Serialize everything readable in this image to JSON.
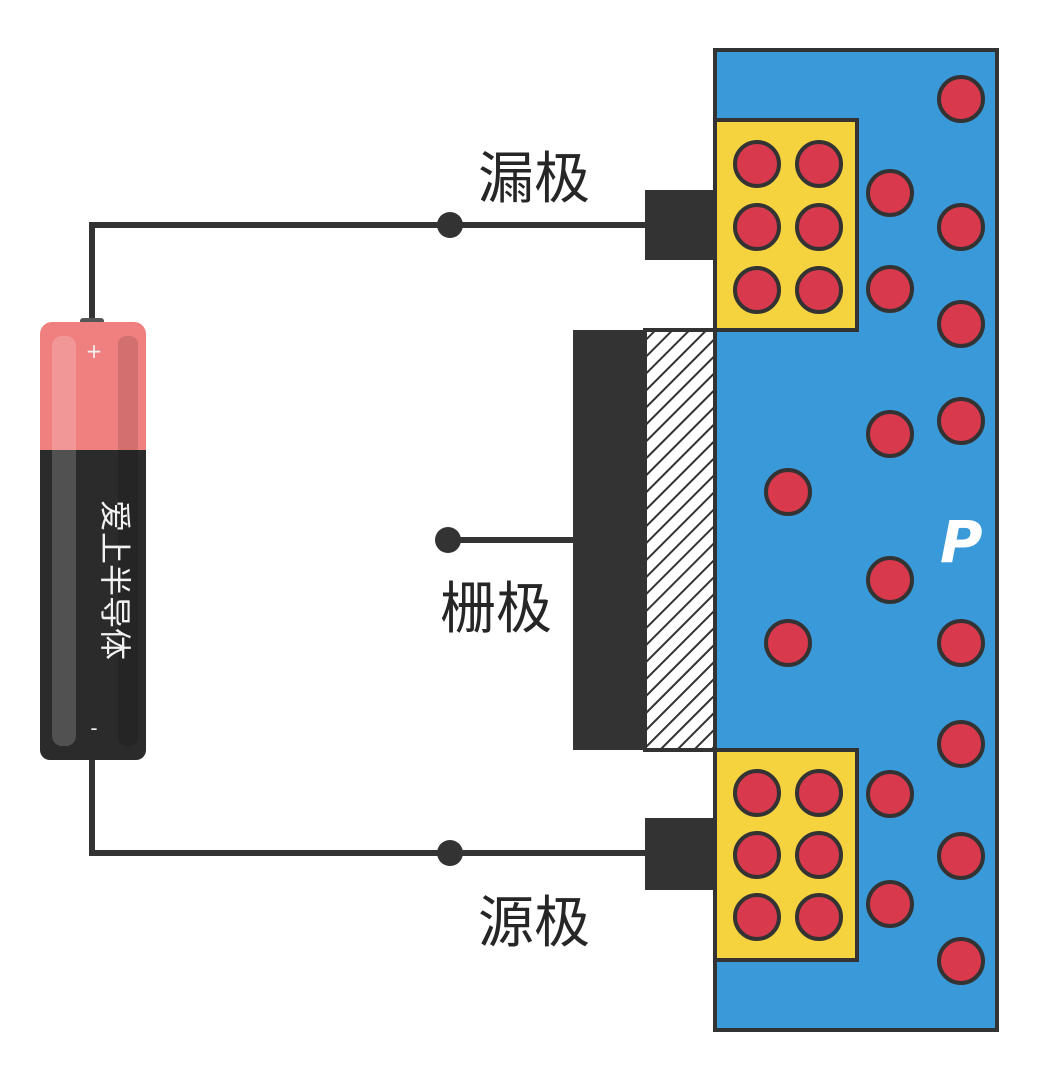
{
  "labels": {
    "drain": "漏极",
    "gate": "栅极",
    "source": "源极",
    "p_region": "P"
  },
  "battery": {
    "text": "爱上半导体",
    "plus": "+",
    "minus": "-"
  },
  "colors": {
    "substrate": "#3a9ad9",
    "n_region": "#f5d33e",
    "carrier": "#d8394d",
    "wire": "#333333",
    "metal": "#333333",
    "battery_cap": "#f08080",
    "battery_body": "#2b2b2b"
  }
}
